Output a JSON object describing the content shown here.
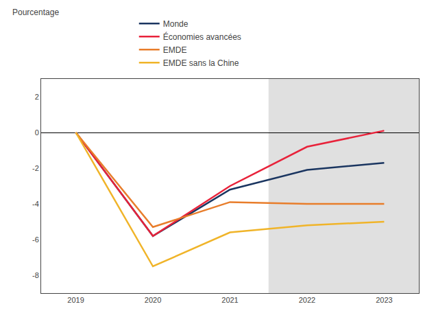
{
  "chart_data": {
    "type": "line",
    "ylabel": "Pourcentage",
    "x": [
      2019,
      2020,
      2021,
      2022,
      2023
    ],
    "series": [
      {
        "name": "Monde",
        "color": "#1a3560",
        "values": [
          0,
          -5.8,
          -3.2,
          -2.1,
          -1.7
        ]
      },
      {
        "name": "Économies avancées",
        "color": "#e8223a",
        "values": [
          0,
          -5.8,
          -3.0,
          -0.8,
          0.1
        ]
      },
      {
        "name": "EMDE",
        "color": "#e87d2b",
        "values": [
          0,
          -5.3,
          -3.9,
          -4.0,
          -4.0
        ]
      },
      {
        "name": "EMDE sans la Chine",
        "color": "#f0b429",
        "values": [
          0,
          -7.5,
          -5.6,
          -5.2,
          -5.0
        ]
      }
    ],
    "xlim": [
      2018.55,
      2023.45
    ],
    "xticks": [
      2019,
      2020,
      2021,
      2022,
      2023
    ],
    "ylim": [
      -9,
      3
    ],
    "yticks": [
      -8,
      -6,
      -4,
      -2,
      0,
      2
    ],
    "shaded_region": {
      "from": 2021.5,
      "to": 2023.45,
      "color": "#e0e0e0"
    },
    "grid": false,
    "legend": "top"
  }
}
